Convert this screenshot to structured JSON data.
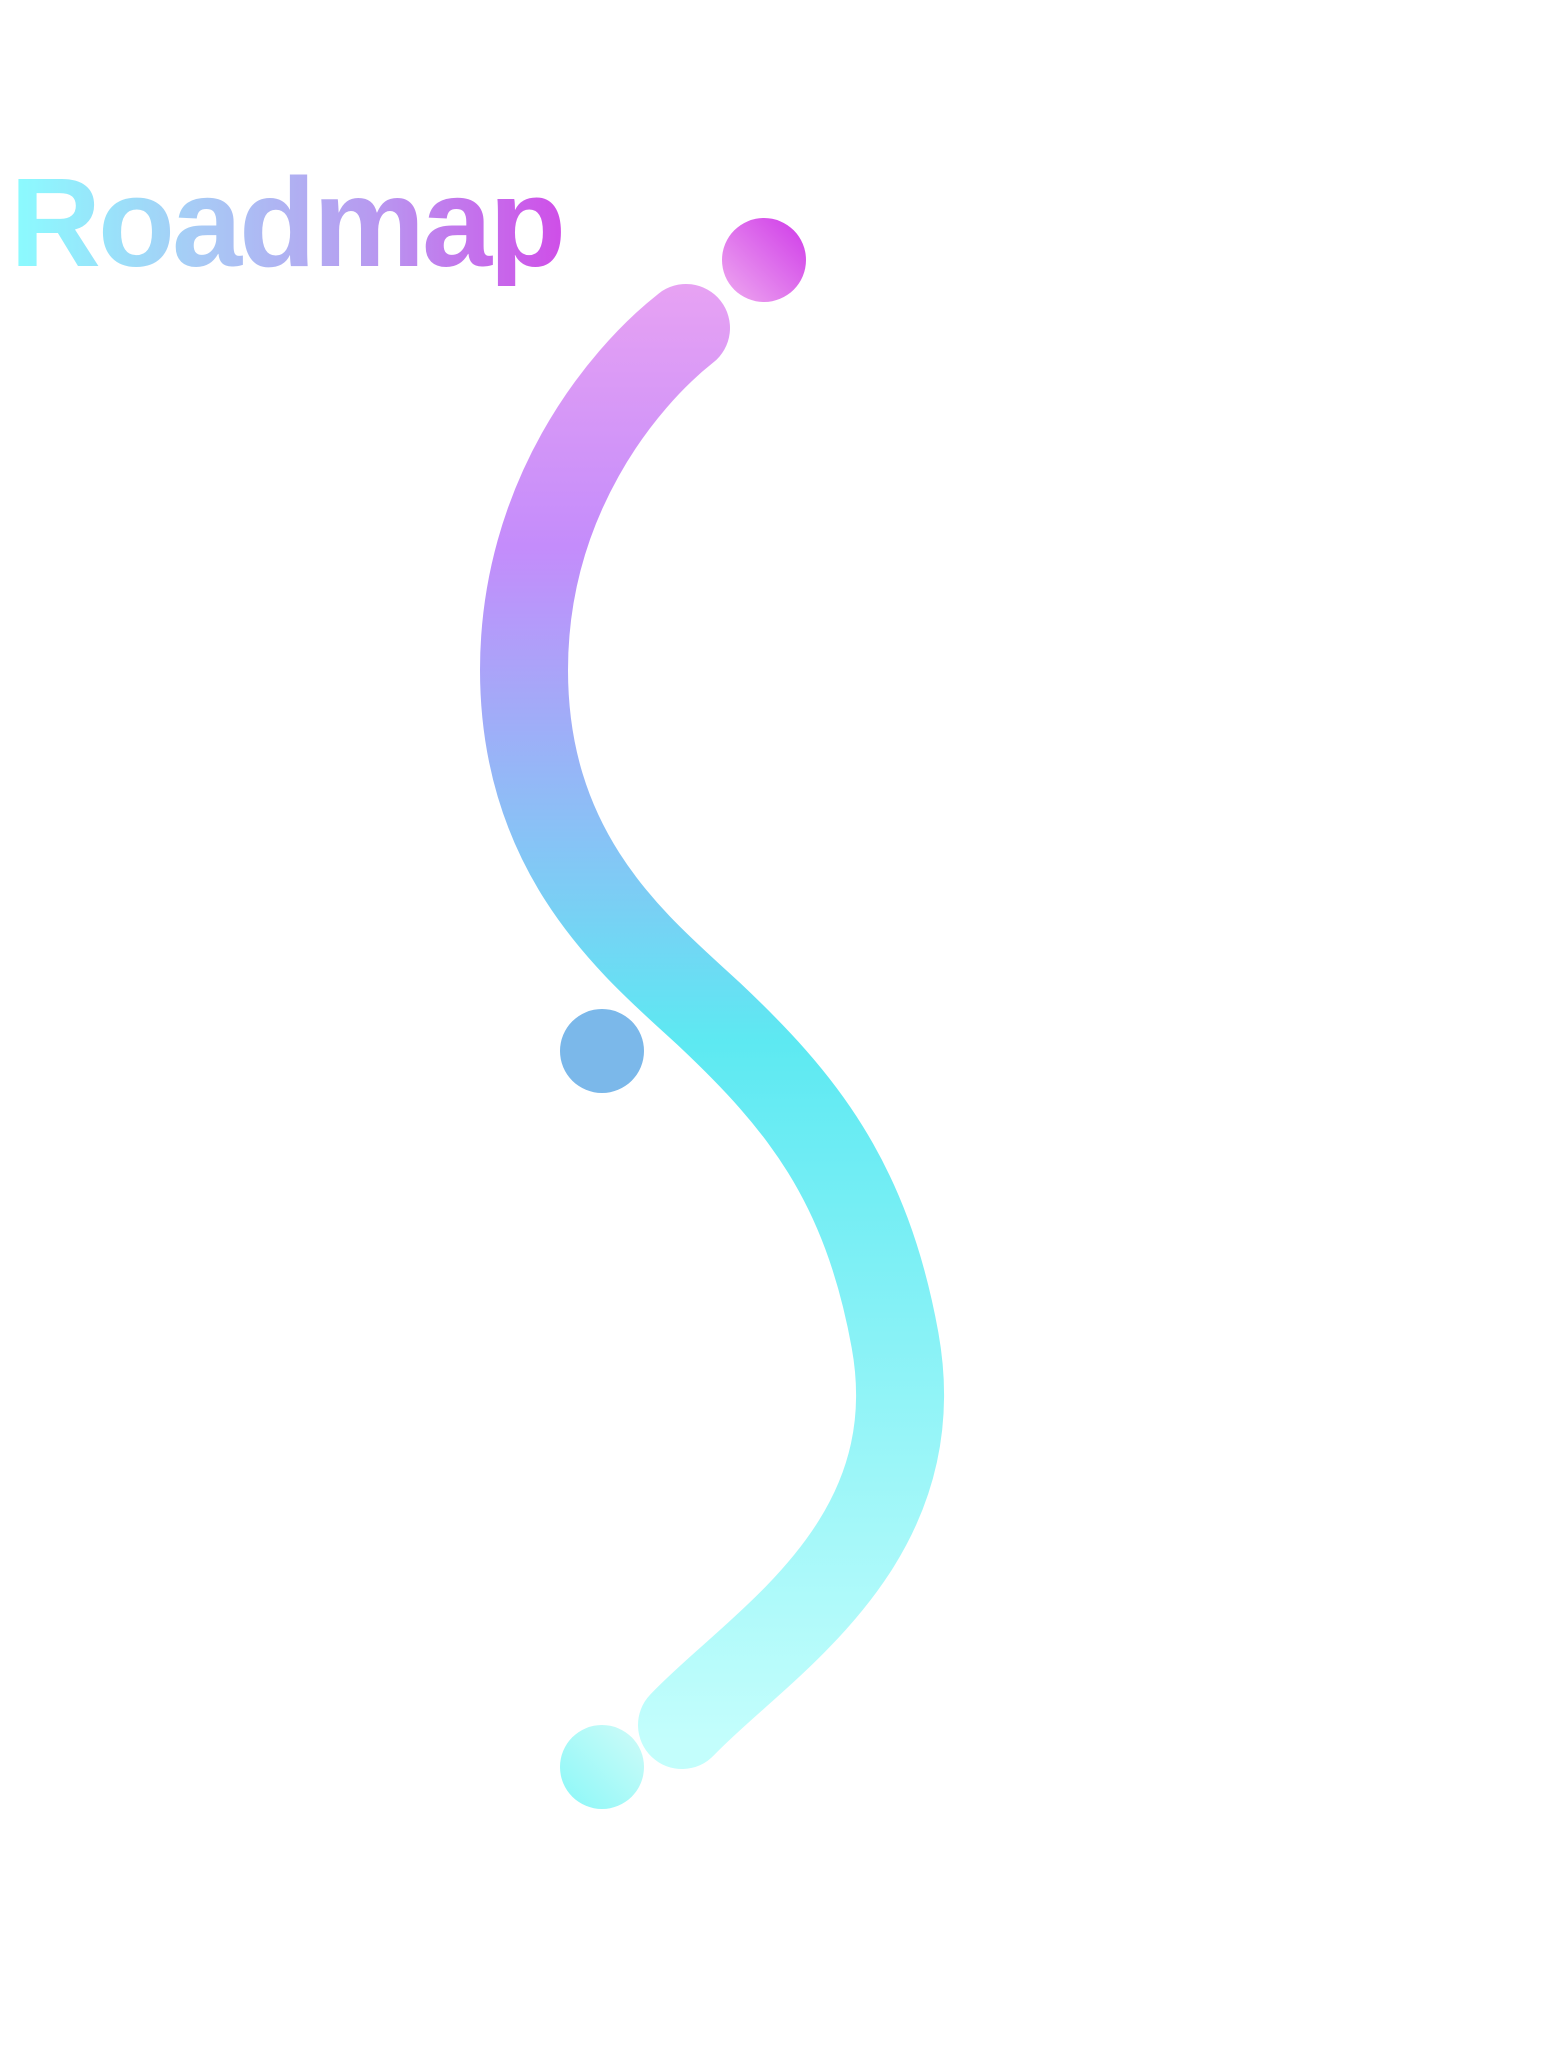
{
  "title": "Roadmap",
  "colors": {
    "path_top": "#e7a2f3",
    "path_upper": "#c48cfb",
    "path_middle": "#5de9f2",
    "path_bottom": "#c3fefc",
    "milestone_top_from": "#cf3ae8",
    "milestone_top_to": "#eeaaf0",
    "milestone_middle": "#7bb8ea",
    "milestone_bottom_from": "#8af8f8",
    "milestone_bottom_to": "#d0fbf8",
    "title_from": "#8afcff",
    "title_to": "#cf4ee8"
  },
  "milestones": [
    {
      "name": "top",
      "icon": "milestone-dot"
    },
    {
      "name": "middle",
      "icon": "milestone-dot"
    },
    {
      "name": "bottom",
      "icon": "milestone-dot"
    }
  ]
}
